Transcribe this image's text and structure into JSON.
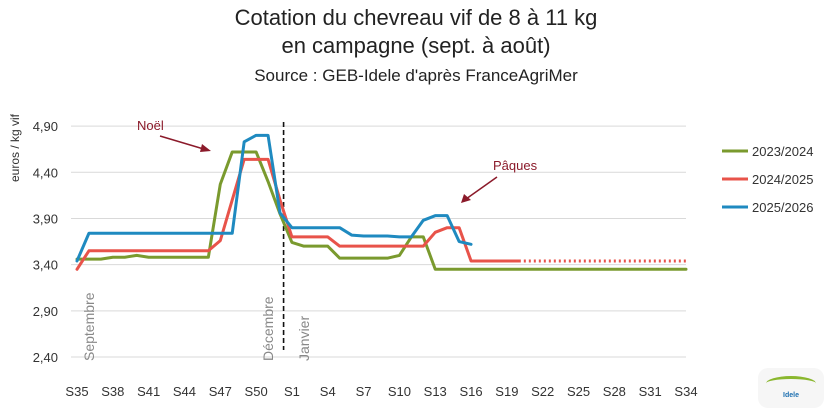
{
  "title": {
    "line1": "Cotation du chevreau vif de 8 à 11 kg",
    "line2": "en campagne (sept. à août)",
    "source": "Source : GEB-Idele d'après FranceAgriMer"
  },
  "logo_text": "Idele",
  "chart_data": {
    "type": "line",
    "ylabel": "euros / kg vif",
    "ylim": [
      2.4,
      5.15
    ],
    "yticks": [
      "2,40",
      "2,90",
      "3,40",
      "3,90",
      "4,40",
      "4,90"
    ],
    "ytick_values": [
      2.4,
      2.9,
      3.4,
      3.9,
      4.4,
      4.9
    ],
    "x_categories": [
      "S35",
      "S36",
      "S37",
      "S38",
      "S39",
      "S40",
      "S41",
      "S42",
      "S43",
      "S44",
      "S45",
      "S46",
      "S47",
      "S48",
      "S49",
      "S50",
      "S51",
      "S52",
      "S1",
      "S2",
      "S3",
      "S4",
      "S5",
      "S6",
      "S7",
      "S8",
      "S9",
      "S10",
      "S11",
      "S12",
      "S13",
      "S14",
      "S15",
      "S16",
      "S17",
      "S18",
      "S19",
      "S20",
      "S21",
      "S22",
      "S23",
      "S24",
      "S25",
      "S26",
      "S27",
      "S28",
      "S29",
      "S30",
      "S31",
      "S32",
      "S33",
      "S34"
    ],
    "xtick_labels": [
      "S35",
      "S38",
      "S41",
      "S44",
      "S47",
      "S50",
      "S1",
      "S4",
      "S7",
      "S10",
      "S13",
      "S16",
      "S19",
      "S22",
      "S25",
      "S28",
      "S31",
      "S34"
    ],
    "grid": "horizontal",
    "legend_position": "right",
    "series": [
      {
        "name": "2023/2024",
        "color": "#7a9a2e",
        "values": [
          3.46,
          3.46,
          3.46,
          3.48,
          3.48,
          3.5,
          3.48,
          3.48,
          3.48,
          3.48,
          3.48,
          3.48,
          4.27,
          4.62,
          4.62,
          4.62,
          4.3,
          3.95,
          3.64,
          3.6,
          3.6,
          3.6,
          3.47,
          3.47,
          3.47,
          3.47,
          3.47,
          3.5,
          3.7,
          3.7,
          3.35,
          3.35,
          3.35,
          3.35,
          3.35,
          3.35,
          3.35,
          3.35,
          3.35,
          3.35,
          3.35,
          3.35,
          3.35,
          3.35,
          3.35,
          3.35,
          3.35,
          3.35,
          3.35,
          3.35,
          3.35,
          3.35
        ]
      },
      {
        "name": "2024/2025",
        "color": "#e8534a",
        "values": [
          3.35,
          3.55,
          3.55,
          3.55,
          3.55,
          3.55,
          3.55,
          3.55,
          3.55,
          3.55,
          3.55,
          3.55,
          3.66,
          4.1,
          4.54,
          4.54,
          4.54,
          4.1,
          3.7,
          3.7,
          3.7,
          3.7,
          3.6,
          3.6,
          3.6,
          3.6,
          3.6,
          3.6,
          3.6,
          3.6,
          3.75,
          3.8,
          3.8,
          3.44,
          3.44,
          3.44,
          3.44,
          3.44,
          3.44,
          3.44,
          3.44,
          3.44,
          3.44,
          3.44,
          3.44,
          3.44,
          3.44,
          3.44,
          3.44,
          3.44,
          3.44,
          3.44
        ],
        "solid_until_index": 37,
        "dotted_from_index": 37
      },
      {
        "name": "2025/2026",
        "color": "#1f8ac0",
        "values": [
          3.44,
          3.74,
          3.74,
          3.74,
          3.74,
          3.74,
          3.74,
          3.74,
          3.74,
          3.74,
          3.74,
          3.74,
          3.74,
          3.74,
          4.73,
          4.8,
          4.8,
          3.96,
          3.8,
          3.8,
          3.8,
          3.8,
          3.8,
          3.72,
          3.71,
          3.71,
          3.71,
          3.7,
          3.7,
          3.88,
          3.93,
          3.93,
          3.65,
          3.62
        ]
      }
    ],
    "vertical_labels": [
      {
        "text": "Septembre",
        "at_index": 1
      },
      {
        "text": "Décembre",
        "at_index": 16
      },
      {
        "text": "Janvier",
        "at_index": 19
      }
    ],
    "divider_index": 17.3,
    "annotations": [
      {
        "text": "Noël",
        "color": "#8b1a2a"
      },
      {
        "text": "Pâques",
        "color": "#8b1a2a"
      }
    ]
  }
}
